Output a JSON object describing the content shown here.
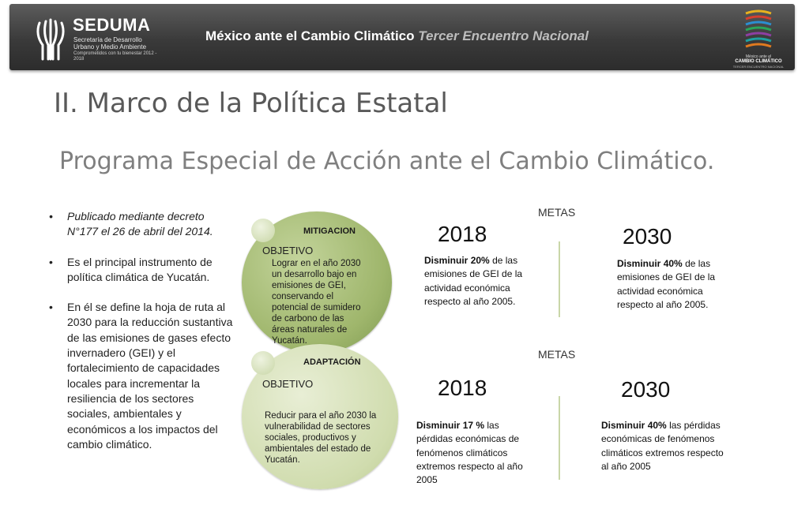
{
  "header": {
    "org_name": "SEDUMA",
    "org_sub": "Secretaría de Desarrollo Urbano y Medio Ambiente",
    "org_tag": "Comprometidos con tu bienestar 2012 - 2018",
    "title_main": "México ante el Cambio Climático",
    "title_sub": "Tercer Encuentro Nacional",
    "logo_line1": "México ante el",
    "logo_line2": "CAMBIO CLIMÁTICO",
    "logo_line3": "TERCER ENCUENTRO NACIONAL"
  },
  "title": "II. Marco de la Política Estatal",
  "subtitle": "Programa Especial de Acción ante el Cambio Climático.",
  "bullets": [
    "Publicado mediante decreto N°177 el 26 de abril del 2014.",
    "Es el principal instrumento de política climática de Yucatán.",
    "En él se define la hoja de ruta al 2030 para la reducción sustantiva de las emisiones de gases efecto invernadero (GEI) y el fortalecimiento de capacidades locales para incrementar la resiliencia de los sectores sociales, ambientales y económicos a los impactos del cambio climático."
  ],
  "mitigacion": {
    "label": "MITIGACION",
    "objetivo_label": "OBJETIVO",
    "objetivo_text": "Lograr en el año 2030 un desarrollo bajo en emisiones de GEI, conservando el potencial de sumidero de carbono de las áreas naturales de Yucatán.",
    "metas_label": "METAS",
    "goal_2018": {
      "year": "2018",
      "verb": "Disminuir",
      "pct": "20%",
      "rest": "de las emisiones de GEI de la actividad económica respecto al año 2005."
    },
    "goal_2030": {
      "year": "2030",
      "verb": "Disminuir",
      "pct": "40%",
      "rest": "de las emisiones de GEI de la actividad económica respecto al año 2005."
    }
  },
  "adaptacion": {
    "label": "ADAPTACIÓN",
    "objetivo_label": "OBJETIVO",
    "objetivo_text": "Reducir para el año 2030 la vulnerabilidad de sectores sociales, productivos y ambientales del estado de Yucatán.",
    "metas_label": "METAS",
    "goal_2018": {
      "year": "2018",
      "verb": "Disminuir",
      "pct": "17 %",
      "rest": "las pérdidas económicas de fenómenos climáticos extremos respecto al año 2005"
    },
    "goal_2030": {
      "year": "2030",
      "verb": "Disminuir",
      "pct": "40%",
      "rest": "las pérdidas económicas de fenómenos climáticos extremos respecto al año 2005"
    }
  }
}
